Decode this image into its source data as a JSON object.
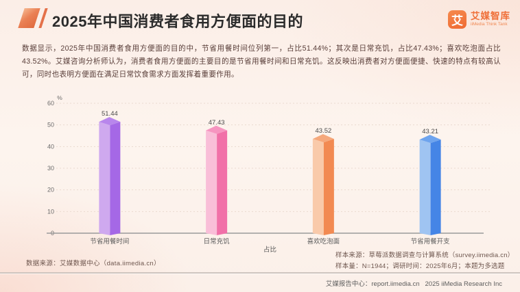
{
  "header": {
    "title": "2025年中国消费者食用方便面的目的",
    "logo": {
      "glyph": "艾",
      "name": "艾媒智库",
      "subtitle": "iiMedia Think Tank"
    }
  },
  "body": {
    "paragraph": "数据显示，2025年中国消费者食用方便面的目的中，节省用餐时间位列第一，占比51.44%；其次是日常充饥，占比47.43%；喜欢吃泡面占比43.52%。艾媒咨询分析师认为，消费者食用方便面的主要目的是节省用餐时间和日常充饥。这反映出消费者对方便面便捷、快速的特点有较高认可，同时也表明方便面在满足日常饮食需求方面发挥着重要作用。"
  },
  "chart_data": {
    "type": "bar",
    "title": "",
    "categories": [
      "节省用餐时间",
      "日常充饥",
      "喜欢吃泡面",
      "节省用餐开支"
    ],
    "values": [
      51.44,
      47.43,
      43.52,
      43.21
    ],
    "xlabel": "占比",
    "ylabel": "%",
    "ylim": [
      0,
      60
    ],
    "yticks": [
      0,
      10,
      20,
      30,
      40,
      50,
      60
    ],
    "grid": "horizontal-dashed",
    "legend": "none",
    "style": "3d-column",
    "bar_colors": [
      {
        "light": "#cfa9ef",
        "dark": "#a568e6",
        "top": "#b886ec"
      },
      {
        "light": "#f9bed8",
        "dark": "#f170a8",
        "top": "#f695c0"
      },
      {
        "light": "#f9caaa",
        "dark": "#f28a52",
        "top": "#f5a87c"
      },
      {
        "light": "#9fc4f2",
        "dark": "#4585e6",
        "top": "#6ea4ee"
      }
    ]
  },
  "footer": {
    "data_source": "数据来源：艾媒数据中心（data.iimedia.cn）",
    "sample_source": "样本来源：草莓派数据调查与计算系统（survey.iimedia.cn）",
    "sample_info": "样本量：N=1944；调研时间：2025年6月；本题为多选题",
    "report_line": "艾媒报告中心：report.iimedia.cn   2025 iiMedia Research Inc"
  },
  "colors": {
    "accent_orange": "#e4714a",
    "brand_orange": "#ef6f38",
    "title_text": "#2b2b2b",
    "body_text": "#583d38",
    "axis_line": "#9a9a9a",
    "grid_line": "#ead9cf",
    "tick_text": "#6b6b6b",
    "value_label": "#4a4a4a",
    "background": "#fdf3ec"
  }
}
